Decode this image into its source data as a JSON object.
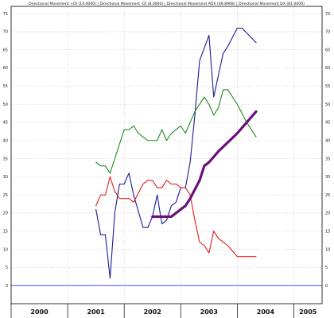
{
  "chart_data": {
    "type": "line",
    "title": "Directional Movement +DI (14.0000) | Directional Movement -DI (8.0000) | Directional Movement ADX (48.8968) | Directional Movement DX (81.0000)",
    "xlabel": "",
    "ylabel": "",
    "x_ticks": [
      "2000",
      "2001",
      "2002",
      "2003",
      "2004",
      "2005"
    ],
    "y_ticks": [
      0,
      5,
      10,
      15,
      20,
      25,
      30,
      35,
      40,
      45,
      50,
      55,
      60,
      65,
      70,
      75
    ],
    "ylim": [
      -5,
      77
    ],
    "xlim": [
      "2000-01",
      "2005-07"
    ],
    "grid": true,
    "reference_line": {
      "y": 0,
      "color": "#4a4aff"
    },
    "series": [
      {
        "color": "#1a1a9c",
        "points": [
          [
            "2001-07",
            21
          ],
          [
            "2001-08",
            14
          ],
          [
            "2001-09",
            14
          ],
          [
            "2001-10",
            2
          ],
          [
            "2001-11",
            20
          ],
          [
            "2001-12",
            28
          ],
          [
            "2002-01",
            28
          ],
          [
            "2002-02",
            31
          ],
          [
            "2002-03",
            25
          ],
          [
            "2002-05",
            16
          ],
          [
            "2002-06",
            16
          ],
          [
            "2002-07",
            19
          ],
          [
            "2002-08",
            25
          ],
          [
            "2002-09",
            17
          ],
          [
            "2002-10",
            18
          ],
          [
            "2002-11",
            22
          ],
          [
            "2002-12",
            23
          ],
          [
            "2003-01",
            27
          ],
          [
            "2003-02",
            27
          ],
          [
            "2003-03",
            34
          ],
          [
            "2003-04",
            47
          ],
          [
            "2003-05",
            62
          ],
          [
            "2003-07",
            69
          ],
          [
            "2003-08",
            52
          ],
          [
            "2003-09",
            58
          ],
          [
            "2003-10",
            64
          ],
          [
            "2003-11",
            66
          ],
          [
            "2004-01",
            71
          ],
          [
            "2004-02",
            71
          ],
          [
            "2004-05",
            67
          ]
        ]
      },
      {
        "color": "#e41a1a",
        "points": [
          [
            "2001-07",
            22
          ],
          [
            "2001-08",
            25
          ],
          [
            "2001-09",
            25
          ],
          [
            "2001-10",
            30
          ],
          [
            "2001-11",
            26
          ],
          [
            "2001-12",
            24
          ],
          [
            "2002-02",
            24
          ],
          [
            "2002-03",
            23
          ],
          [
            "2002-05",
            28
          ],
          [
            "2002-06",
            29
          ],
          [
            "2002-07",
            29
          ],
          [
            "2002-08",
            27
          ],
          [
            "2002-09",
            27
          ],
          [
            "2002-10",
            29
          ],
          [
            "2002-11",
            28
          ],
          [
            "2002-12",
            28
          ],
          [
            "2003-01",
            27
          ],
          [
            "2003-02",
            27
          ],
          [
            "2003-03",
            25
          ],
          [
            "2003-04",
            18
          ],
          [
            "2003-05",
            12
          ],
          [
            "2003-06",
            11
          ],
          [
            "2003-07",
            9
          ],
          [
            "2003-08",
            15
          ],
          [
            "2003-09",
            13
          ],
          [
            "2003-10",
            12
          ],
          [
            "2003-11",
            11
          ],
          [
            "2004-01",
            8
          ],
          [
            "2004-02",
            8
          ],
          [
            "2004-05",
            8
          ]
        ]
      },
      {
        "color": "#1f8a1f",
        "points": [
          [
            "2001-07",
            34
          ],
          [
            "2001-08",
            33
          ],
          [
            "2001-09",
            33
          ],
          [
            "2001-10",
            31
          ],
          [
            "2001-11",
            35
          ],
          [
            "2001-12",
            39
          ],
          [
            "2002-01",
            43
          ],
          [
            "2002-02",
            43
          ],
          [
            "2002-03",
            44
          ],
          [
            "2002-04",
            42
          ],
          [
            "2002-05",
            41
          ],
          [
            "2002-06",
            40
          ],
          [
            "2002-07",
            40
          ],
          [
            "2002-08",
            40
          ],
          [
            "2002-09",
            43
          ],
          [
            "2002-10",
            40
          ],
          [
            "2002-11",
            42
          ],
          [
            "2002-12",
            43
          ],
          [
            "2003-01",
            44
          ],
          [
            "2003-02",
            42
          ],
          [
            "2003-03",
            45
          ],
          [
            "2003-04",
            48
          ],
          [
            "2003-06",
            52
          ],
          [
            "2003-07",
            50
          ],
          [
            "2003-08",
            47
          ],
          [
            "2003-09",
            49
          ],
          [
            "2003-10",
            54
          ],
          [
            "2003-11",
            54
          ],
          [
            "2004-01",
            50
          ],
          [
            "2004-03",
            45
          ],
          [
            "2004-05",
            41
          ]
        ]
      },
      {
        "color": "#6a0f7a",
        "points": [
          [
            "2002-07",
            19
          ],
          [
            "2002-09",
            19
          ],
          [
            "2002-11",
            19
          ],
          [
            "2003-01",
            21
          ],
          [
            "2003-02",
            22
          ],
          [
            "2003-03",
            24
          ],
          [
            "2003-05",
            29
          ],
          [
            "2003-06",
            33
          ],
          [
            "2003-07",
            34
          ],
          [
            "2003-09",
            37
          ],
          [
            "2004-01",
            42
          ],
          [
            "2004-03",
            45
          ],
          [
            "2004-05",
            48
          ]
        ]
      }
    ]
  }
}
